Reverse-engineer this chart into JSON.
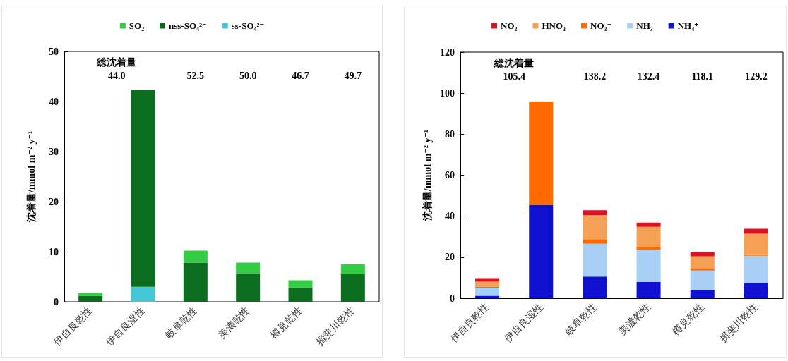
{
  "chart_data": [
    {
      "type": "bar",
      "stacked": true,
      "ylabel": "沈着量/mmol m⁻² y⁻¹",
      "categories": [
        "伊自良乾性",
        "伊自良湿性",
        "岐阜乾性",
        "美濃乾性",
        "樽見乾性",
        "揖斐川乾性"
      ],
      "series": [
        {
          "name": "ss-SO₄²⁻",
          "color": "#44c8d8",
          "values": [
            0,
            3.0,
            0,
            0,
            0,
            0
          ]
        },
        {
          "name": "nss-SO₄²⁻",
          "color": "#0a6e1e",
          "values": [
            1.2,
            39.3,
            7.8,
            5.6,
            2.9,
            5.5
          ]
        },
        {
          "name": "SO₂",
          "color": "#33cc44",
          "values": [
            0.5,
            0,
            2.4,
            2.2,
            1.4,
            2.0
          ]
        }
      ],
      "ylim": [
        0,
        50
      ],
      "yticks": [
        0,
        10,
        20,
        30,
        40,
        50
      ],
      "grid": false,
      "legend": "top",
      "annotations": [
        "総沈着量",
        "44.0",
        "52.5",
        "50.0",
        "46.7",
        "49.7"
      ]
    },
    {
      "type": "bar",
      "stacked": true,
      "ylabel": "沈着量/mmol m⁻² y⁻¹",
      "categories": [
        "伊自良乾性",
        "伊自良湿性",
        "岐阜乾性",
        "美濃乾性",
        "樽見乾性",
        "揖斐川乾性"
      ],
      "series": [
        {
          "name": "NH₄⁺",
          "color": "#1010d0",
          "values": [
            1.2,
            45.6,
            10.6,
            8.0,
            4.1,
            7.4
          ]
        },
        {
          "name": "NH₃",
          "color": "#a8d0f5",
          "values": [
            4.0,
            0,
            16.0,
            15.6,
            9.4,
            13.3
          ]
        },
        {
          "name": "NO₃⁻",
          "color": "#ff6a00",
          "values": [
            0.5,
            50.3,
            2.2,
            1.6,
            1.2,
            0.8
          ]
        },
        {
          "name": "HNO₃",
          "color": "#f5a055",
          "values": [
            2.4,
            0,
            11.8,
            9.6,
            5.8,
            10.0
          ]
        },
        {
          "name": "NO₂",
          "color": "#dd1122",
          "values": [
            1.7,
            0,
            2.3,
            2.1,
            2.1,
            2.4
          ]
        }
      ],
      "ylim": [
        0,
        120
      ],
      "yticks": [
        0,
        20,
        40,
        60,
        80,
        100,
        120
      ],
      "grid": false,
      "legend": "top",
      "annotations": [
        "総沈着量",
        "105.4",
        "138.2",
        "132.4",
        "118.1",
        "129.2"
      ]
    }
  ]
}
